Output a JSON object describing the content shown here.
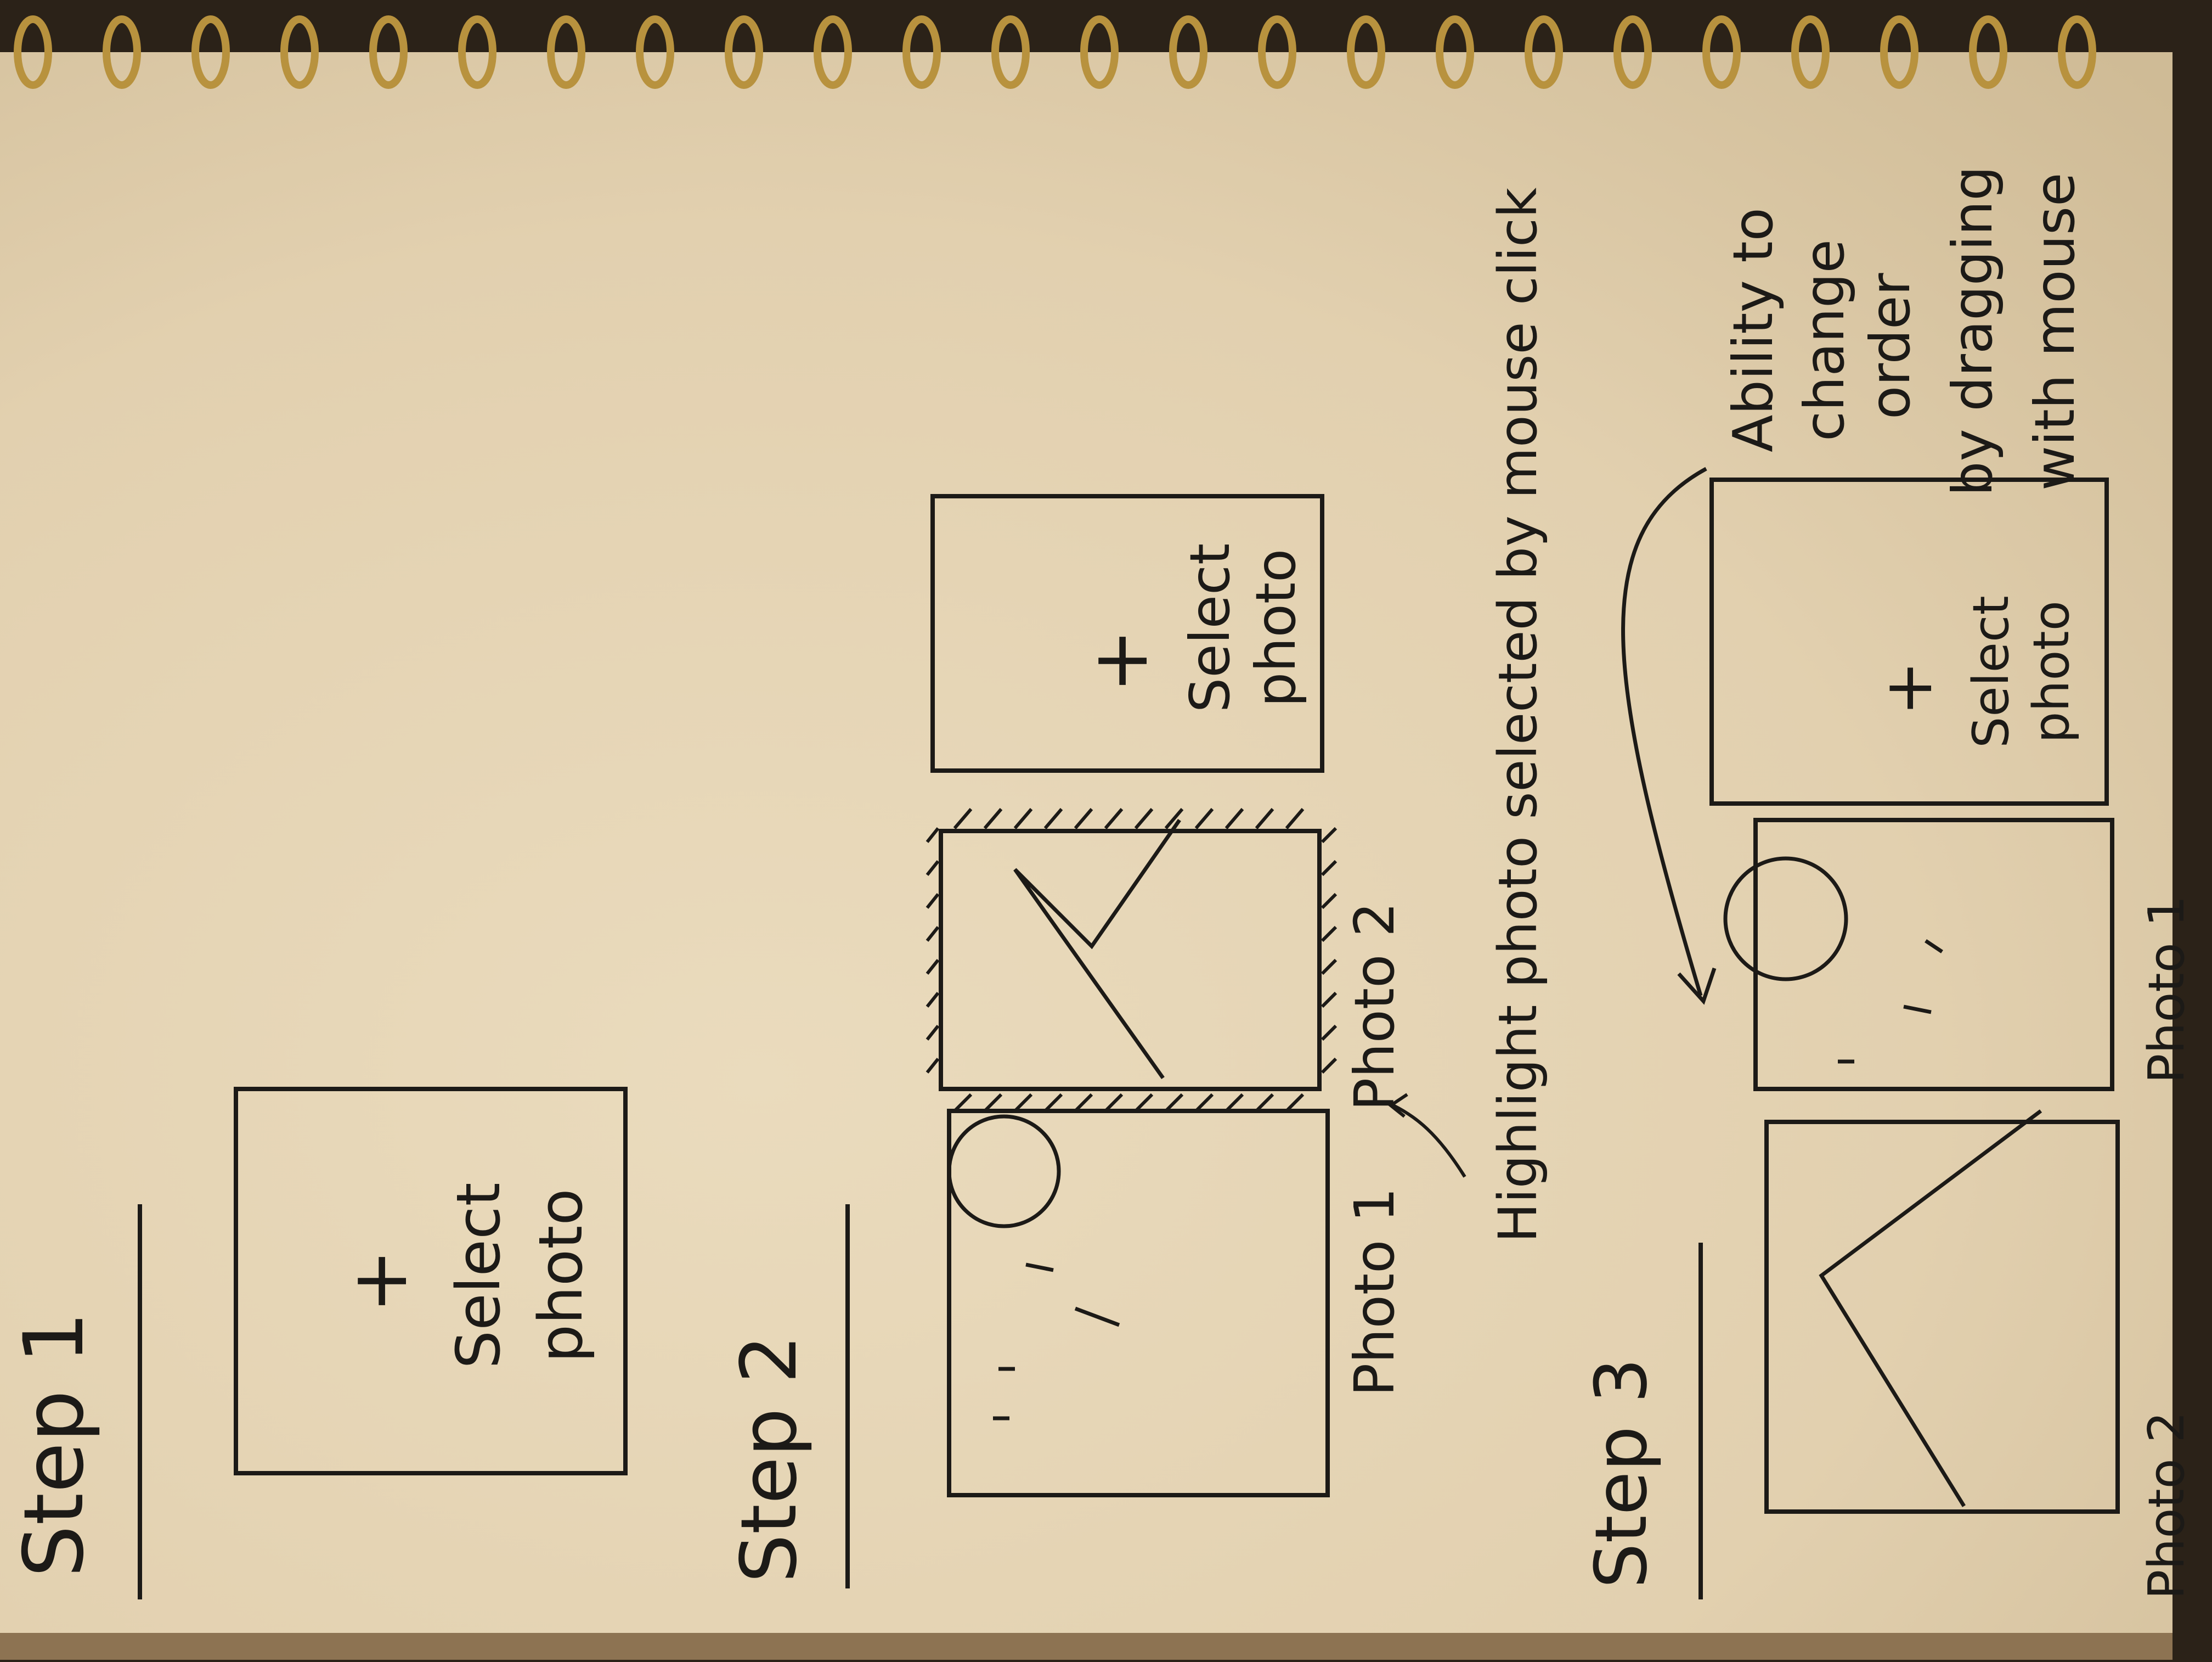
{
  "steps": [
    {
      "heading": "Step 1",
      "slots": [
        {
          "kind": "empty",
          "plus": "+",
          "line1": "Select",
          "line2": "photo"
        }
      ]
    },
    {
      "heading": "Step 2",
      "slots": [
        {
          "kind": "photo",
          "illustration": "sun-picture",
          "caption": "Photo 1"
        },
        {
          "kind": "photo",
          "illustration": "mountain-picture",
          "caption": "Photo 2",
          "highlighted": true
        },
        {
          "kind": "empty",
          "plus": "+",
          "line1": "Select",
          "line2": "photo"
        }
      ],
      "annotation": "Highlight photo selected by mouse click"
    },
    {
      "heading": "Step 3",
      "slots": [
        {
          "kind": "photo",
          "illustration": "mountain-picture",
          "caption": "Photo 2"
        },
        {
          "kind": "photo",
          "illustration": "sun-picture",
          "caption": "Photo 1"
        },
        {
          "kind": "empty",
          "plus": "+",
          "line1": "Select",
          "line2": "photo"
        }
      ],
      "annotation_lines": [
        "Ability to",
        "change",
        "order",
        "by dragging",
        "with mouse"
      ]
    }
  ],
  "colors": {
    "paper": "#e4d3b4",
    "ink": "#1c1a17",
    "background": "#2b2218",
    "spiral": "#b8923e"
  }
}
